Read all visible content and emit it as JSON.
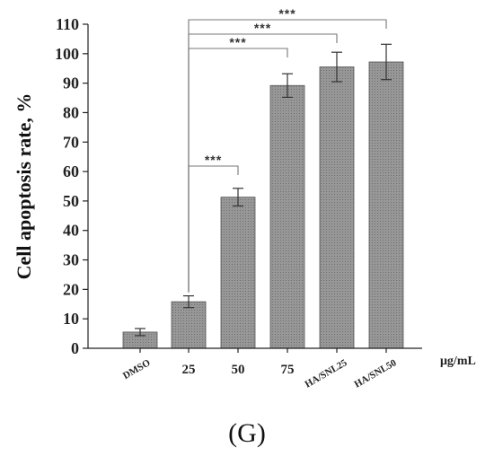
{
  "chart_data": {
    "type": "bar",
    "categories": [
      "DMSO",
      "25",
      "50",
      "75",
      "HA/SNL25",
      "HA/SNL50"
    ],
    "values": [
      5.5,
      15.8,
      51.3,
      89.2,
      95.5,
      97.2
    ],
    "errors": [
      1.2,
      2.0,
      3.0,
      4.0,
      5.0,
      6.0
    ],
    "ylabel": "Cell apoptosis rate, %",
    "x_unit": "μg/mL",
    "ylim": [
      0,
      110
    ],
    "yticks": [
      0,
      10,
      20,
      30,
      40,
      50,
      60,
      70,
      80,
      90,
      100,
      110
    ],
    "significance": [
      {
        "from": "25",
        "to": "50",
        "label": "***"
      },
      {
        "from": "25",
        "to": "75",
        "label": "***"
      },
      {
        "from": "25",
        "to": "HA/SNL25",
        "label": "***"
      },
      {
        "from": "25",
        "to": "HA/SNL50",
        "label": "***"
      }
    ],
    "panel_label": "(G)",
    "bar_color": "#8c8c8c"
  }
}
